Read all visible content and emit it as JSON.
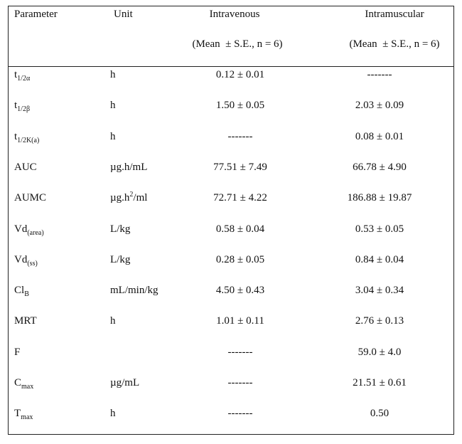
{
  "table": {
    "header": [
      {
        "text": "Parameter"
      },
      {
        "text": "Unit"
      },
      {
        "text": "Intravenous",
        "note": "(Mean  ± S.E., n = 6)"
      },
      {
        "text": "Intramuscular",
        "note": "(Mean  ± S.E., n = 6)"
      }
    ],
    "rows": [
      {
        "parameter": {
          "base": "t",
          "sub": "1/2α"
        },
        "unit": {
          "base": "h"
        },
        "iv": "0.12 ± 0.01",
        "im": "-------"
      },
      {
        "parameter": {
          "base": "t",
          "sub": "1/2β"
        },
        "unit": {
          "base": "h"
        },
        "iv": "1.50 ± 0.05",
        "im": "2.03 ± 0.09"
      },
      {
        "parameter": {
          "base": "t",
          "sub": "1/2K(a)"
        },
        "unit": {
          "base": "h"
        },
        "iv": "-------",
        "im": "0.08 ± 0.01"
      },
      {
        "parameter": {
          "base": "AUC"
        },
        "unit": {
          "base": "µg.h/mL"
        },
        "iv": "77.51 ± 7.49",
        "im": "66.78 ± 4.90"
      },
      {
        "parameter": {
          "base": "AUMC"
        },
        "unit": {
          "base": "µg.h",
          "sup": "2",
          "rest": "/ml"
        },
        "iv": "72.71 ± 4.22",
        "im": "186.88 ± 19.87"
      },
      {
        "parameter": {
          "base": "Vd",
          "sub": "(area)"
        },
        "unit": {
          "base": "L/kg"
        },
        "iv": "0.58 ± 0.04",
        "im": "0.53 ± 0.05"
      },
      {
        "parameter": {
          "base": "Vd",
          "sub": "(ss)"
        },
        "unit": {
          "base": "L/kg"
        },
        "iv": "0.28 ± 0.05",
        "im": "0.84 ± 0.04"
      },
      {
        "parameter": {
          "base": "Cl",
          "sub": "B"
        },
        "unit": {
          "base": "mL/min/kg"
        },
        "iv": "4.50 ± 0.43",
        "im": "3.04 ± 0.34"
      },
      {
        "parameter": {
          "base": "MRT"
        },
        "unit": {
          "base": "h"
        },
        "iv": "1.01 ± 0.11",
        "im": "2.76 ± 0.13"
      },
      {
        "parameter": {
          "base": "F"
        },
        "iv": "-------",
        "im": "59.0 ± 4.0"
      },
      {
        "parameter": {
          "base": "C",
          "sub": "max"
        },
        "unit": {
          "base": "µg/mL"
        },
        "iv": "-------",
        "im": "21.51 ± 0.61"
      },
      {
        "parameter": {
          "base": "T",
          "sub": "max"
        },
        "unit": {
          "base": "h"
        },
        "iv": "-------",
        "im": "0.50"
      }
    ]
  }
}
